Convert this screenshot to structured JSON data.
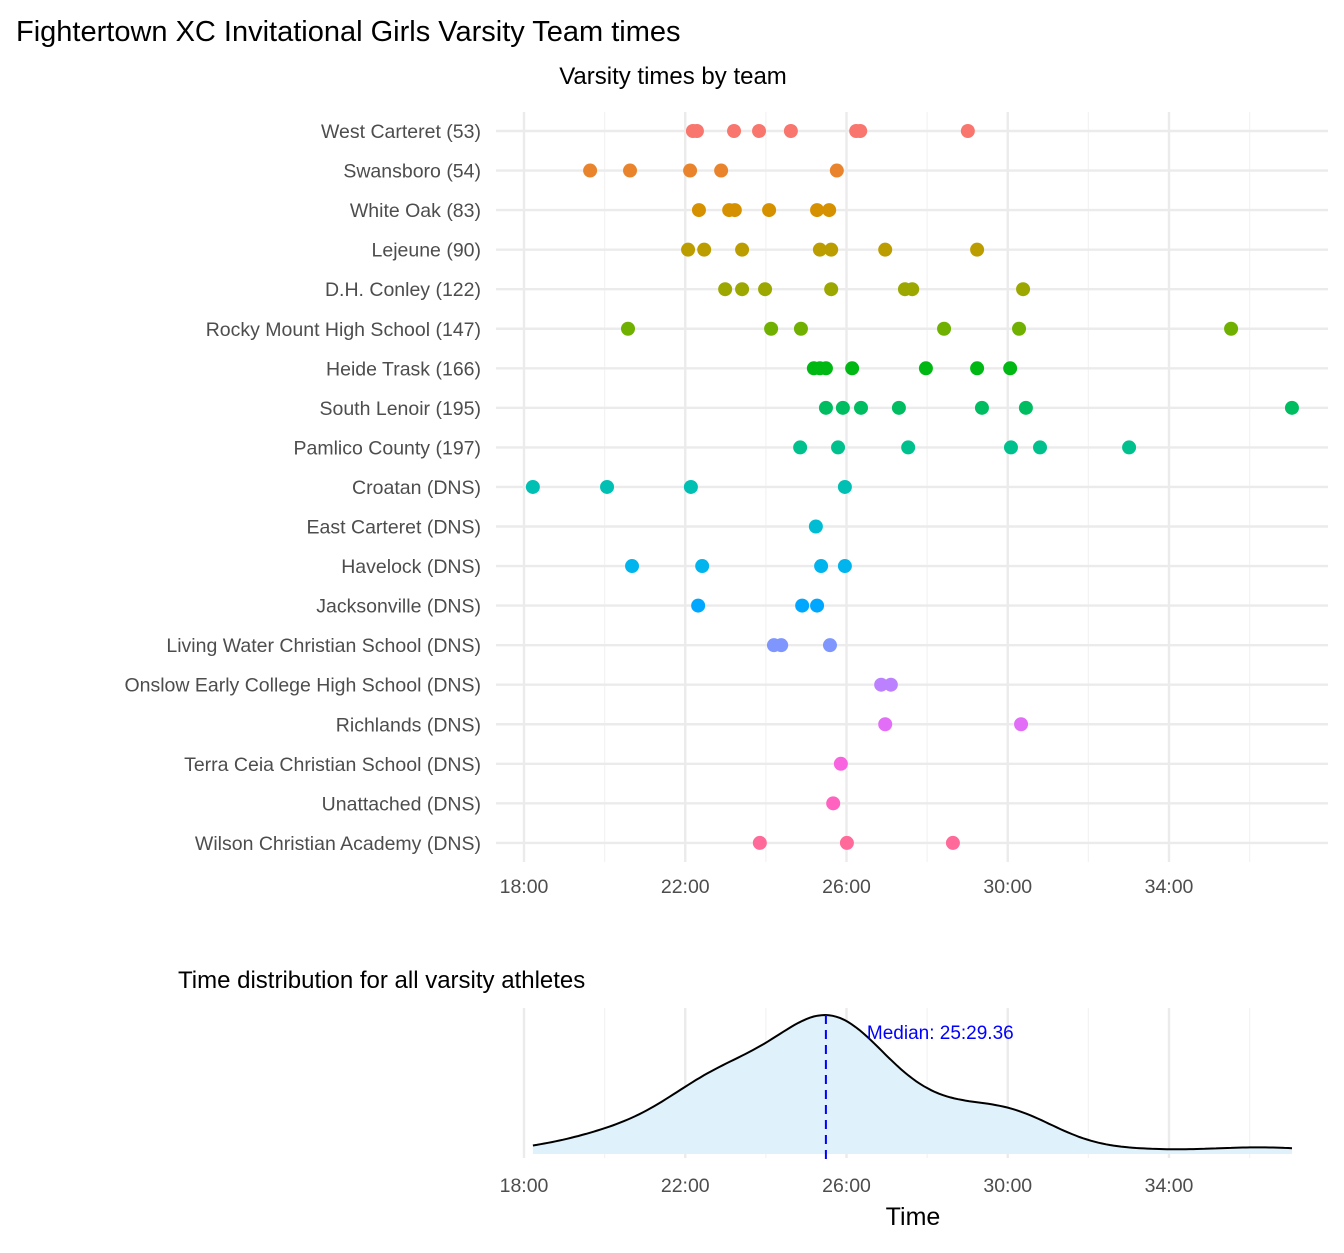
{
  "chart_data": [
    {
      "type": "scatter",
      "title": "Fightertown XC Invitational Girls Varsity Team times",
      "subtitle": "Varsity times by team",
      "xlabel": "",
      "ylabel": "",
      "x_unit": "minutes",
      "xlim": [
        17.7,
        37.5
      ],
      "x_ticks": [
        18,
        22,
        26,
        30,
        34
      ],
      "x_tick_labels": [
        "18:00",
        "22:00",
        "26:00",
        "30:00",
        "34:00"
      ],
      "grid": true,
      "legend": "none",
      "series": [
        {
          "name": "West Carteret (53)",
          "color": "#F8766D",
          "values": [
            22.19,
            22.29,
            23.21,
            23.83,
            24.62,
            26.24,
            26.34,
            29.01
          ]
        },
        {
          "name": "Swansboro (54)",
          "color": "#E9842C",
          "values": [
            19.64,
            20.63,
            22.12,
            22.89,
            25.76
          ]
        },
        {
          "name": "White Oak (83)",
          "color": "#D69100",
          "values": [
            22.34,
            23.09,
            23.23,
            24.08,
            25.27,
            25.57
          ]
        },
        {
          "name": "Lejeune (90)",
          "color": "#BC9D00",
          "values": [
            22.07,
            22.47,
            23.41,
            25.34,
            25.62,
            26.96,
            29.24
          ]
        },
        {
          "name": "D.H. Conley (122)",
          "color": "#9CA700",
          "values": [
            22.99,
            23.41,
            23.98,
            25.62,
            27.45,
            27.63,
            30.38
          ]
        },
        {
          "name": "Rocky Mount High School (147)",
          "color": "#6FB000",
          "values": [
            20.58,
            24.13,
            24.87,
            28.42,
            30.28,
            35.54
          ]
        },
        {
          "name": "Heide Trask (166)",
          "color": "#00B813",
          "values": [
            25.19,
            25.34,
            25.49,
            26.14,
            27.97,
            29.24,
            30.06
          ]
        },
        {
          "name": "South Lenoir (195)",
          "color": "#00BD61",
          "values": [
            25.49,
            25.91,
            26.36,
            27.3,
            29.36,
            30.45,
            37.05
          ]
        },
        {
          "name": "Pamlico County (197)",
          "color": "#00C08E",
          "values": [
            24.85,
            25.79,
            27.53,
            30.08,
            30.8,
            33.01
          ]
        },
        {
          "name": "Croatan (DNS)",
          "color": "#00C0B4",
          "values": [
            18.22,
            20.06,
            22.14,
            25.96
          ]
        },
        {
          "name": "East Carteret (DNS)",
          "color": "#00BDD4",
          "values": [
            25.24
          ]
        },
        {
          "name": "Havelock (DNS)",
          "color": "#00B5EE",
          "values": [
            20.68,
            22.42,
            25.37,
            25.96
          ]
        },
        {
          "name": "Jacksonville (DNS)",
          "color": "#00A7FF",
          "values": [
            22.32,
            24.9,
            25.27
          ]
        },
        {
          "name": "Living Water Christian School (DNS)",
          "color": "#7F96FF",
          "values": [
            24.2,
            24.38,
            25.59
          ]
        },
        {
          "name": "Onslow Early College High School (DNS)",
          "color": "#BC81FF",
          "values": [
            26.86,
            27.1
          ]
        },
        {
          "name": "Richlands (DNS)",
          "color": "#E26EF7",
          "values": [
            26.96,
            30.33
          ]
        },
        {
          "name": "Terra Ceia Christian School (DNS)",
          "color": "#F863DF",
          "values": [
            25.86
          ]
        },
        {
          "name": "Unattached (DNS)",
          "color": "#FF62BF",
          "values": [
            25.67
          ]
        },
        {
          "name": "Wilson Christian Academy (DNS)",
          "color": "#FF6A9A",
          "values": [
            23.85,
            26.01,
            28.64
          ]
        }
      ]
    },
    {
      "type": "area",
      "title": "Time distribution for all varsity athletes",
      "xlabel": "Time",
      "ylabel": "",
      "description_of_values": "kernel density of all athlete times above",
      "x_ticks": [
        18,
        22,
        26,
        30,
        34
      ],
      "x_tick_labels": [
        "18:00",
        "22:00",
        "26:00",
        "30:00",
        "34:00"
      ],
      "fill_color": "#DFF1FA",
      "line_color": "#000000",
      "median": 25.489,
      "median_label": "Median: 25:29.36",
      "median_color": "#0000FF"
    }
  ]
}
